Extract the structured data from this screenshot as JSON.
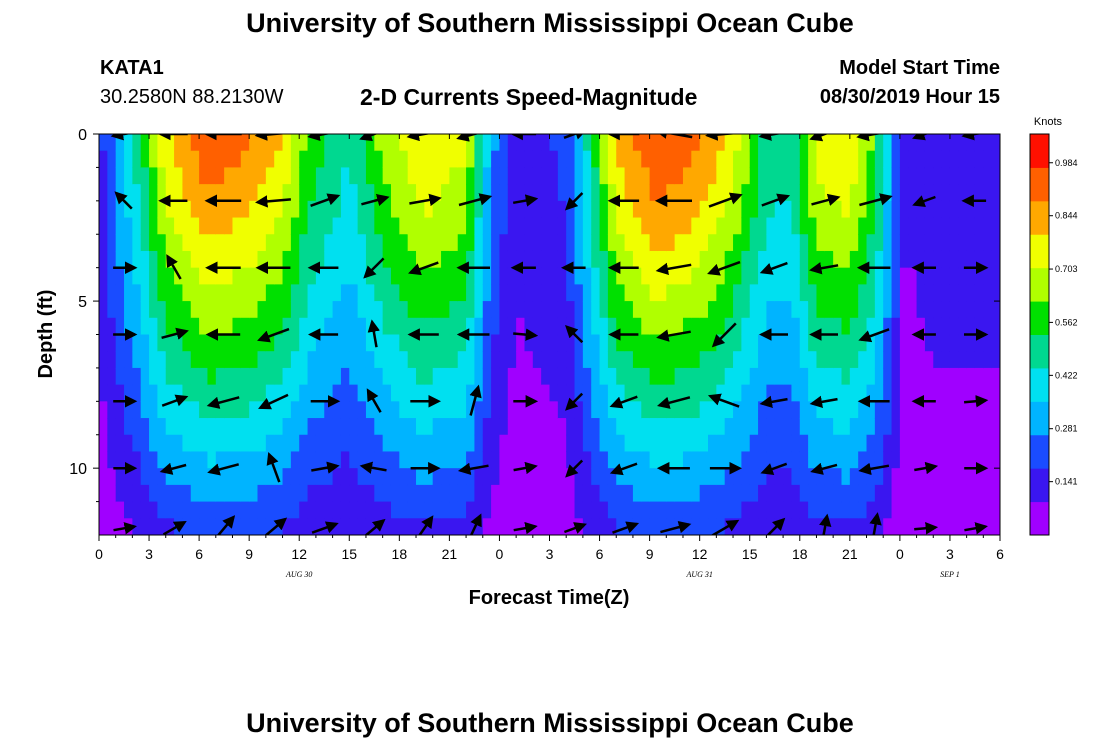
{
  "header": {
    "title": "University of Southern Mississippi Ocean Cube",
    "station": "KATA1",
    "coords": "30.2580N 88.2130W",
    "subtitle": "2-D Currents Speed-Magnitude",
    "model_start_label": "Model Start Time",
    "model_start_value": "08/30/2019 Hour 15",
    "footer_title": "University of Southern Mississippi Ocean Cube"
  },
  "chart_data": {
    "type": "heatmap",
    "title": "2-D Currents Speed-Magnitude",
    "xlabel": "Forecast Time(Z)",
    "ylabel": "Depth (ft)",
    "colorbar_label": "Knots",
    "xlim": [
      0,
      54
    ],
    "ylim": [
      0,
      12
    ],
    "x_ticks": [
      0,
      3,
      6,
      9,
      12,
      15,
      18,
      21,
      24,
      27,
      30,
      33,
      36,
      39,
      42,
      45,
      48,
      51,
      54
    ],
    "x_tick_labels": [
      "0",
      "3",
      "6",
      "9",
      "12",
      "15",
      "18",
      "21",
      "0",
      "3",
      "6",
      "9",
      "12",
      "15",
      "18",
      "21",
      "0",
      "3",
      "6"
    ],
    "y_ticks": [
      0,
      5,
      10
    ],
    "y_tick_labels": [
      "0",
      "5",
      "10"
    ],
    "date_labels": [
      {
        "x": 12,
        "label": "AUG 30"
      },
      {
        "x": 36,
        "label": "AUG 31"
      },
      {
        "x": 51,
        "label": "SEP 1"
      }
    ],
    "colorbar_ticks": [
      0.141,
      0.281,
      0.422,
      0.562,
      0.703,
      0.844,
      0.984
    ],
    "colorbar_tick_labels": [
      "0.141",
      "0.281",
      "0.422",
      "0.562",
      "0.703",
      "0.844",
      "0.984"
    ],
    "colorbar_range": [
      0.0,
      1.06
    ],
    "colors": [
      "#a000ff",
      "#3a16f0",
      "#1a4cff",
      "#00b4ff",
      "#00e0f0",
      "#00d890",
      "#00e000",
      "#b0ff00",
      "#f0ff00",
      "#ffa800",
      "#ff6000",
      "#ff1000"
    ],
    "speed_fronts": [
      {
        "t": 0,
        "v": 0.14
      },
      {
        "t": 1,
        "v": 0.3
      },
      {
        "t": 2.5,
        "v": 0.5
      },
      {
        "t": 4,
        "v": 0.78
      },
      {
        "t": 6.5,
        "v": 0.95
      },
      {
        "t": 9,
        "v": 0.9
      },
      {
        "t": 11,
        "v": 0.8
      },
      {
        "t": 12.5,
        "v": 0.6
      },
      {
        "t": 15,
        "v": 0.45
      },
      {
        "t": 17,
        "v": 0.65
      },
      {
        "t": 19.5,
        "v": 0.8
      },
      {
        "t": 22,
        "v": 0.72
      },
      {
        "t": 23.5,
        "v": 0.3
      },
      {
        "t": 25,
        "v": 0.12
      },
      {
        "t": 28,
        "v": 0.2
      },
      {
        "t": 29.5,
        "v": 0.5
      },
      {
        "t": 31,
        "v": 0.82
      },
      {
        "t": 33.5,
        "v": 0.98
      },
      {
        "t": 36,
        "v": 0.9
      },
      {
        "t": 38,
        "v": 0.75
      },
      {
        "t": 40,
        "v": 0.5
      },
      {
        "t": 41.5,
        "v": 0.48
      },
      {
        "t": 43,
        "v": 0.75
      },
      {
        "t": 45,
        "v": 0.8
      },
      {
        "t": 46.5,
        "v": 0.6
      },
      {
        "t": 48.3,
        "v": 0.1
      },
      {
        "t": 50,
        "v": 0.15
      },
      {
        "t": 54,
        "v": 0.15
      }
    ],
    "depth_decay": 0.8,
    "vector_depths": [
      0,
      2,
      4,
      6,
      8,
      10,
      11.8
    ],
    "vector_times": [
      1.5,
      4.5,
      7.5,
      10.5,
      13.5,
      16.5,
      19.5,
      22.5,
      25.5,
      28.5,
      31.5,
      34.5,
      37.5,
      40.5,
      43.5,
      46.5,
      49.5,
      52.5
    ],
    "vector_directions_deg": [
      [
        190,
        180,
        180,
        185,
        190,
        200,
        190,
        195,
        180,
        20,
        180,
        170,
        185,
        190,
        200,
        190,
        200,
        190
      ],
      [
        135,
        180,
        180,
        185,
        20,
        15,
        10,
        15,
        10,
        225,
        180,
        180,
        20,
        20,
        15,
        15,
        200,
        180
      ],
      [
        0,
        120,
        180,
        180,
        180,
        225,
        200,
        180,
        180,
        180,
        180,
        190,
        200,
        200,
        190,
        180,
        180,
        0
      ],
      [
        0,
        15,
        180,
        200,
        180,
        100,
        180,
        180,
        355,
        135,
        180,
        190,
        225,
        180,
        180,
        200,
        180,
        0
      ],
      [
        0,
        20,
        195,
        205,
        0,
        120,
        0,
        75,
        0,
        225,
        200,
        195,
        160,
        190,
        190,
        180,
        180,
        5
      ],
      [
        0,
        195,
        195,
        110,
        10,
        170,
        0,
        190,
        10,
        225,
        200,
        180,
        0,
        200,
        195,
        190,
        10,
        0
      ],
      [
        10,
        30,
        50,
        40,
        20,
        40,
        55,
        65,
        10,
        20,
        20,
        15,
        30,
        45,
        80,
        80,
        5,
        10
      ]
    ],
    "vector_magnitudes": [
      0.14,
      0.45,
      0.95,
      0.9,
      0.6,
      0.45,
      0.7,
      0.8,
      0.2,
      0.15,
      0.6,
      0.98,
      0.9,
      0.5,
      0.5,
      0.8,
      0.15,
      0.15
    ]
  }
}
